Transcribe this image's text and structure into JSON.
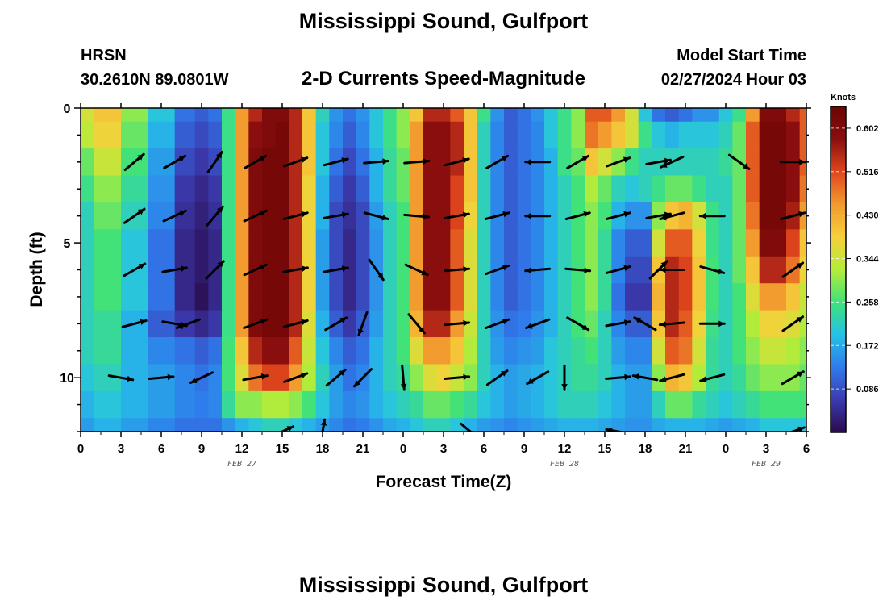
{
  "header": {
    "title": "Mississippi Sound, Gulfport",
    "station": "HRSN",
    "coords": "30.2610N  89.0801W",
    "subtitle": "2-D Currents Speed-Magnitude",
    "model_label": "Model Start Time",
    "model_time": "02/27/2024 Hour 03"
  },
  "footer": {
    "title": "Mississippi Sound, Gulfport"
  },
  "colors": {
    "scale": [
      "#2a0a4a",
      "#3b3bb0",
      "#2f7bec",
      "#25c2e6",
      "#3fe27a",
      "#b6ec3a",
      "#f5d03a",
      "#f29a2e",
      "#e0461e",
      "#8a0e0e",
      "#6a0505"
    ]
  },
  "chart_data": {
    "type": "heatmap",
    "title": "Mississippi Sound, Gulfport",
    "subtitle": "2-D Currents Speed-Magnitude",
    "xlabel": "Forecast Time(Z)",
    "ylabel": "Depth (ft)",
    "x_hours": [
      0,
      54
    ],
    "x_tick_labels": [
      "0",
      "3",
      "6",
      "9",
      "12",
      "15",
      "18",
      "21",
      "0",
      "3",
      "6",
      "9",
      "12",
      "15",
      "18",
      "21",
      "0",
      "3",
      "6"
    ],
    "date_labels": [
      {
        "hour": 12,
        "text": "FEB 27"
      },
      {
        "hour": 36,
        "text": "FEB 28"
      },
      {
        "hour": 51,
        "text": "FEB 29"
      }
    ],
    "ylim": [
      0,
      12
    ],
    "y_tick_labels": [
      "0",
      "5",
      "10"
    ],
    "colorbar": {
      "units": "Knots",
      "range": [
        0.0,
        0.645
      ],
      "tick_labels": [
        "0.602",
        "0.516",
        "0.430",
        "0.344",
        "0.258",
        "0.172",
        "0.086"
      ]
    },
    "depths": [
      0,
      1,
      2,
      3,
      4,
      5,
      6,
      7,
      8,
      9,
      10,
      11,
      12
    ],
    "times": [
      0,
      2,
      4,
      6,
      8,
      9,
      10,
      11,
      12,
      13,
      14,
      15,
      16,
      17,
      18,
      19,
      20,
      21,
      22,
      23,
      24,
      25,
      26,
      27,
      28,
      29,
      30,
      31,
      32,
      33,
      34,
      35,
      36,
      37,
      38,
      39,
      40,
      41,
      42,
      43,
      44,
      45,
      46,
      47,
      48,
      49,
      50,
      51,
      52,
      53,
      54
    ],
    "speed_by_depth": [
      [
        0.35,
        0.4,
        0.3,
        0.2,
        0.12,
        0.1,
        0.12,
        0.25,
        0.45,
        0.55,
        0.6,
        0.6,
        0.55,
        0.4,
        0.22,
        0.15,
        0.12,
        0.15,
        0.2,
        0.25,
        0.3,
        0.4,
        0.55,
        0.55,
        0.5,
        0.4,
        0.25,
        0.15,
        0.1,
        0.12,
        0.15,
        0.2,
        0.25,
        0.3,
        0.5,
        0.5,
        0.45,
        0.35,
        0.2,
        0.12,
        0.1,
        0.12,
        0.15,
        0.15,
        0.2,
        0.25,
        0.45,
        0.6,
        0.6,
        0.55,
        0.5
      ],
      [
        0.33,
        0.38,
        0.28,
        0.18,
        0.1,
        0.08,
        0.1,
        0.25,
        0.45,
        0.58,
        0.6,
        0.62,
        0.55,
        0.4,
        0.2,
        0.14,
        0.1,
        0.14,
        0.2,
        0.25,
        0.3,
        0.45,
        0.58,
        0.58,
        0.55,
        0.4,
        0.22,
        0.14,
        0.1,
        0.12,
        0.14,
        0.2,
        0.25,
        0.3,
        0.48,
        0.45,
        0.4,
        0.35,
        0.25,
        0.2,
        0.18,
        0.2,
        0.2,
        0.2,
        0.22,
        0.28,
        0.5,
        0.62,
        0.62,
        0.58,
        0.5
      ],
      [
        0.28,
        0.34,
        0.26,
        0.16,
        0.08,
        0.06,
        0.08,
        0.25,
        0.45,
        0.6,
        0.62,
        0.62,
        0.55,
        0.4,
        0.2,
        0.12,
        0.08,
        0.12,
        0.18,
        0.24,
        0.28,
        0.45,
        0.58,
        0.58,
        0.55,
        0.4,
        0.22,
        0.14,
        0.1,
        0.12,
        0.14,
        0.18,
        0.25,
        0.28,
        0.4,
        0.35,
        0.3,
        0.25,
        0.22,
        0.22,
        0.22,
        0.22,
        0.22,
        0.22,
        0.24,
        0.28,
        0.5,
        0.62,
        0.62,
        0.58,
        0.5
      ],
      [
        0.25,
        0.3,
        0.24,
        0.15,
        0.06,
        0.04,
        0.06,
        0.25,
        0.45,
        0.6,
        0.62,
        0.62,
        0.55,
        0.38,
        0.18,
        0.1,
        0.06,
        0.1,
        0.18,
        0.24,
        0.28,
        0.45,
        0.58,
        0.58,
        0.52,
        0.4,
        0.22,
        0.14,
        0.1,
        0.12,
        0.14,
        0.18,
        0.22,
        0.26,
        0.32,
        0.28,
        0.22,
        0.2,
        0.22,
        0.25,
        0.28,
        0.28,
        0.25,
        0.22,
        0.22,
        0.28,
        0.5,
        0.62,
        0.62,
        0.58,
        0.48
      ],
      [
        0.22,
        0.28,
        0.22,
        0.14,
        0.05,
        0.03,
        0.05,
        0.25,
        0.45,
        0.6,
        0.62,
        0.62,
        0.55,
        0.38,
        0.18,
        0.08,
        0.05,
        0.08,
        0.16,
        0.22,
        0.26,
        0.45,
        0.58,
        0.58,
        0.52,
        0.38,
        0.22,
        0.14,
        0.1,
        0.12,
        0.14,
        0.18,
        0.22,
        0.26,
        0.3,
        0.26,
        0.18,
        0.15,
        0.15,
        0.3,
        0.4,
        0.42,
        0.35,
        0.25,
        0.22,
        0.28,
        0.48,
        0.62,
        0.62,
        0.56,
        0.45
      ],
      [
        0.22,
        0.26,
        0.2,
        0.12,
        0.04,
        0.02,
        0.04,
        0.25,
        0.45,
        0.6,
        0.62,
        0.62,
        0.55,
        0.38,
        0.16,
        0.08,
        0.04,
        0.08,
        0.15,
        0.22,
        0.26,
        0.45,
        0.58,
        0.58,
        0.5,
        0.36,
        0.22,
        0.14,
        0.1,
        0.12,
        0.14,
        0.18,
        0.22,
        0.26,
        0.3,
        0.24,
        0.14,
        0.1,
        0.1,
        0.35,
        0.5,
        0.5,
        0.38,
        0.25,
        0.22,
        0.28,
        0.45,
        0.6,
        0.6,
        0.52,
        0.4
      ],
      [
        0.22,
        0.26,
        0.2,
        0.12,
        0.04,
        0.02,
        0.04,
        0.25,
        0.45,
        0.6,
        0.62,
        0.62,
        0.55,
        0.38,
        0.16,
        0.08,
        0.04,
        0.08,
        0.15,
        0.22,
        0.26,
        0.45,
        0.58,
        0.58,
        0.5,
        0.36,
        0.22,
        0.14,
        0.1,
        0.12,
        0.14,
        0.18,
        0.22,
        0.26,
        0.3,
        0.24,
        0.14,
        0.08,
        0.08,
        0.4,
        0.55,
        0.52,
        0.4,
        0.26,
        0.22,
        0.28,
        0.4,
        0.55,
        0.55,
        0.48,
        0.38
      ],
      [
        0.22,
        0.26,
        0.2,
        0.12,
        0.04,
        0.01,
        0.04,
        0.25,
        0.45,
        0.6,
        0.62,
        0.62,
        0.55,
        0.38,
        0.16,
        0.08,
        0.04,
        0.08,
        0.15,
        0.22,
        0.26,
        0.45,
        0.58,
        0.58,
        0.5,
        0.36,
        0.22,
        0.14,
        0.1,
        0.12,
        0.14,
        0.18,
        0.22,
        0.26,
        0.3,
        0.24,
        0.12,
        0.06,
        0.06,
        0.42,
        0.55,
        0.52,
        0.4,
        0.26,
        0.22,
        0.26,
        0.36,
        0.45,
        0.45,
        0.4,
        0.34
      ],
      [
        0.22,
        0.24,
        0.18,
        0.1,
        0.06,
        0.04,
        0.06,
        0.25,
        0.45,
        0.6,
        0.62,
        0.62,
        0.55,
        0.36,
        0.18,
        0.1,
        0.06,
        0.1,
        0.16,
        0.22,
        0.26,
        0.42,
        0.55,
        0.55,
        0.45,
        0.34,
        0.22,
        0.15,
        0.12,
        0.13,
        0.15,
        0.18,
        0.22,
        0.26,
        0.28,
        0.22,
        0.14,
        0.1,
        0.1,
        0.4,
        0.55,
        0.5,
        0.38,
        0.25,
        0.22,
        0.26,
        0.32,
        0.38,
        0.38,
        0.36,
        0.32
      ],
      [
        0.22,
        0.24,
        0.18,
        0.14,
        0.12,
        0.1,
        0.12,
        0.26,
        0.4,
        0.55,
        0.58,
        0.58,
        0.5,
        0.34,
        0.2,
        0.14,
        0.1,
        0.12,
        0.18,
        0.22,
        0.26,
        0.36,
        0.45,
        0.45,
        0.4,
        0.32,
        0.22,
        0.16,
        0.14,
        0.15,
        0.16,
        0.2,
        0.22,
        0.24,
        0.26,
        0.22,
        0.16,
        0.14,
        0.14,
        0.35,
        0.5,
        0.48,
        0.35,
        0.24,
        0.22,
        0.26,
        0.3,
        0.34,
        0.34,
        0.32,
        0.3
      ],
      [
        0.2,
        0.22,
        0.18,
        0.16,
        0.14,
        0.12,
        0.14,
        0.26,
        0.36,
        0.48,
        0.52,
        0.52,
        0.45,
        0.32,
        0.22,
        0.16,
        0.12,
        0.14,
        0.18,
        0.22,
        0.24,
        0.3,
        0.36,
        0.38,
        0.34,
        0.3,
        0.22,
        0.18,
        0.16,
        0.17,
        0.18,
        0.2,
        0.22,
        0.24,
        0.24,
        0.22,
        0.18,
        0.16,
        0.16,
        0.3,
        0.42,
        0.4,
        0.32,
        0.24,
        0.22,
        0.24,
        0.28,
        0.3,
        0.3,
        0.3,
        0.28
      ],
      [
        0.18,
        0.2,
        0.18,
        0.16,
        0.14,
        0.13,
        0.14,
        0.24,
        0.3,
        0.3,
        0.32,
        0.32,
        0.3,
        0.26,
        0.2,
        0.16,
        0.14,
        0.15,
        0.18,
        0.2,
        0.22,
        0.24,
        0.28,
        0.28,
        0.26,
        0.24,
        0.2,
        0.18,
        0.16,
        0.17,
        0.18,
        0.2,
        0.22,
        0.22,
        0.22,
        0.2,
        0.18,
        0.16,
        0.16,
        0.22,
        0.28,
        0.28,
        0.24,
        0.22,
        0.2,
        0.22,
        0.24,
        0.26,
        0.26,
        0.26,
        0.26
      ],
      [
        0.16,
        0.18,
        0.16,
        0.14,
        0.12,
        0.12,
        0.12,
        0.15,
        0.18,
        0.2,
        0.22,
        0.22,
        0.2,
        0.18,
        0.16,
        0.14,
        0.12,
        0.13,
        0.15,
        0.17,
        0.18,
        0.2,
        0.22,
        0.22,
        0.2,
        0.18,
        0.16,
        0.15,
        0.14,
        0.15,
        0.16,
        0.17,
        0.18,
        0.18,
        0.18,
        0.17,
        0.16,
        0.15,
        0.15,
        0.17,
        0.18,
        0.18,
        0.18,
        0.17,
        0.16,
        0.17,
        0.18,
        0.2,
        0.2,
        0.2,
        0.2
      ]
    ],
    "vectors": [
      {
        "t": 4,
        "d": 2,
        "a": -40
      },
      {
        "t": 7,
        "d": 2,
        "a": -30
      },
      {
        "t": 10,
        "d": 2,
        "a": -55
      },
      {
        "t": 13,
        "d": 2,
        "a": -30
      },
      {
        "t": 16,
        "d": 2,
        "a": -20
      },
      {
        "t": 19,
        "d": 2,
        "a": -15
      },
      {
        "t": 22,
        "d": 2,
        "a": -5
      },
      {
        "t": 25,
        "d": 2,
        "a": -5
      },
      {
        "t": 28,
        "d": 2,
        "a": -15
      },
      {
        "t": 31,
        "d": 2,
        "a": -30
      },
      {
        "t": 34,
        "d": 2,
        "a": 180
      },
      {
        "t": 37,
        "d": 2,
        "a": -30
      },
      {
        "t": 40,
        "d": 2,
        "a": -20
      },
      {
        "t": 43,
        "d": 2,
        "a": -10
      },
      {
        "t": 44,
        "d": 2,
        "a": 155
      },
      {
        "t": 49,
        "d": 2,
        "a": 35
      },
      {
        "t": 53,
        "d": 2,
        "a": 0
      },
      {
        "t": 4,
        "d": 4,
        "a": -35
      },
      {
        "t": 7,
        "d": 4,
        "a": -25
      },
      {
        "t": 10,
        "d": 4,
        "a": -50
      },
      {
        "t": 13,
        "d": 4,
        "a": -25
      },
      {
        "t": 16,
        "d": 4,
        "a": -15
      },
      {
        "t": 19,
        "d": 4,
        "a": -10
      },
      {
        "t": 22,
        "d": 4,
        "a": 15
      },
      {
        "t": 25,
        "d": 4,
        "a": 5
      },
      {
        "t": 28,
        "d": 4,
        "a": -10
      },
      {
        "t": 31,
        "d": 4,
        "a": -15
      },
      {
        "t": 34,
        "d": 4,
        "a": 180
      },
      {
        "t": 37,
        "d": 4,
        "a": -15
      },
      {
        "t": 40,
        "d": 4,
        "a": -15
      },
      {
        "t": 43,
        "d": 4,
        "a": -10
      },
      {
        "t": 44,
        "d": 4,
        "a": 165
      },
      {
        "t": 47,
        "d": 4,
        "a": 180
      },
      {
        "t": 53,
        "d": 4,
        "a": -15
      },
      {
        "t": 4,
        "d": 6,
        "a": -30
      },
      {
        "t": 7,
        "d": 6,
        "a": -10
      },
      {
        "t": 10,
        "d": 6,
        "a": -45
      },
      {
        "t": 13,
        "d": 6,
        "a": -25
      },
      {
        "t": 16,
        "d": 6,
        "a": -10
      },
      {
        "t": 19,
        "d": 6,
        "a": -10
      },
      {
        "t": 22,
        "d": 6,
        "a": 55
      },
      {
        "t": 25,
        "d": 6,
        "a": 25
      },
      {
        "t": 28,
        "d": 6,
        "a": -5
      },
      {
        "t": 31,
        "d": 6,
        "a": -20
      },
      {
        "t": 34,
        "d": 6,
        "a": 175
      },
      {
        "t": 37,
        "d": 6,
        "a": 5
      },
      {
        "t": 40,
        "d": 6,
        "a": -15
      },
      {
        "t": 43,
        "d": 6,
        "a": -45
      },
      {
        "t": 44,
        "d": 6,
        "a": 180
      },
      {
        "t": 47,
        "d": 6,
        "a": 15
      },
      {
        "t": 53,
        "d": 6,
        "a": -35
      },
      {
        "t": 4,
        "d": 8,
        "a": -15
      },
      {
        "t": 7,
        "d": 8,
        "a": 10
      },
      {
        "t": 8,
        "d": 8,
        "a": 160
      },
      {
        "t": 13,
        "d": 8,
        "a": -20
      },
      {
        "t": 16,
        "d": 8,
        "a": -15
      },
      {
        "t": 19,
        "d": 8,
        "a": -30
      },
      {
        "t": 21,
        "d": 8,
        "a": 110
      },
      {
        "t": 25,
        "d": 8,
        "a": 50
      },
      {
        "t": 28,
        "d": 8,
        "a": -5
      },
      {
        "t": 31,
        "d": 8,
        "a": -20
      },
      {
        "t": 34,
        "d": 8,
        "a": 160
      },
      {
        "t": 37,
        "d": 8,
        "a": 30
      },
      {
        "t": 40,
        "d": 8,
        "a": -10
      },
      {
        "t": 42,
        "d": 8,
        "a": 210
      },
      {
        "t": 44,
        "d": 8,
        "a": 175
      },
      {
        "t": 47,
        "d": 8,
        "a": 0
      },
      {
        "t": 53,
        "d": 8,
        "a": -35
      },
      {
        "t": 3,
        "d": 10,
        "a": 10
      },
      {
        "t": 6,
        "d": 10,
        "a": -5
      },
      {
        "t": 9,
        "d": 10,
        "a": 155
      },
      {
        "t": 13,
        "d": 10,
        "a": -10
      },
      {
        "t": 16,
        "d": 10,
        "a": -20
      },
      {
        "t": 19,
        "d": 10,
        "a": -40
      },
      {
        "t": 21,
        "d": 10,
        "a": 135
      },
      {
        "t": 24,
        "d": 10,
        "a": 85
      },
      {
        "t": 28,
        "d": 10,
        "a": -5
      },
      {
        "t": 31,
        "d": 10,
        "a": -35
      },
      {
        "t": 34,
        "d": 10,
        "a": 150
      },
      {
        "t": 36,
        "d": 10,
        "a": 90
      },
      {
        "t": 40,
        "d": 10,
        "a": -5
      },
      {
        "t": 42,
        "d": 10,
        "a": 190
      },
      {
        "t": 44,
        "d": 10,
        "a": 165
      },
      {
        "t": 47,
        "d": 10,
        "a": 165
      },
      {
        "t": 53,
        "d": 10,
        "a": -30
      },
      {
        "t": 15,
        "d": 12,
        "a": -25
      },
      {
        "t": 18,
        "d": 12,
        "a": -80
      },
      {
        "t": 29,
        "d": 12,
        "a": 40
      },
      {
        "t": 40,
        "d": 12,
        "a": 190
      },
      {
        "t": 53,
        "d": 12,
        "a": -20
      }
    ]
  }
}
